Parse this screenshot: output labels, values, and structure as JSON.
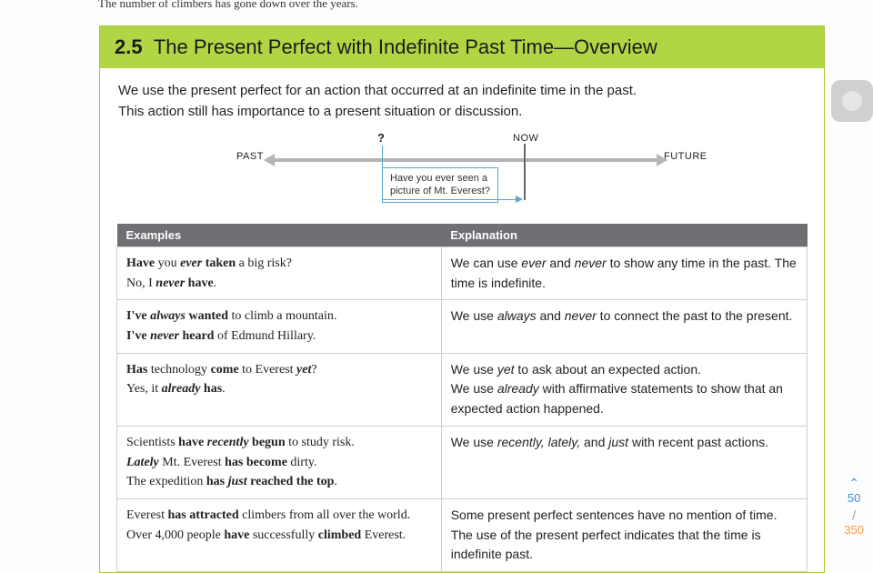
{
  "clipped_top_text": "The number of climbers has gone down over the years.",
  "header": {
    "section_number": "2.5",
    "title": "The Present Perfect with Indefinite Past Time—Overview"
  },
  "intro_lines": [
    "We use the present perfect for an action that occurred at an indefinite time in the past.",
    "This action still has importance to a present situation or discussion."
  ],
  "timeline": {
    "past_label": "PAST",
    "future_label": "FUTURE",
    "now_label": "NOW",
    "question_mark": "?",
    "callout_line1": "Have you ever seen a",
    "callout_line2": "picture of Mt. Everest?"
  },
  "table": {
    "headers": {
      "col1": "Examples",
      "col2": "Explanation"
    },
    "rows": [
      {
        "example_html": "<span class=\"b\">Have</span> you <span class=\"ib\">ever</span> <span class=\"b\">taken</span> a big risk?<br>No, I <span class=\"ib\">never</span> <span class=\"b\">have</span>.",
        "explanation_html": "We can use <span class=\"i\">ever</span> and <span class=\"i\">never</span> to show any time in the past. The time is indefinite."
      },
      {
        "example_html": "<span class=\"b\">I've</span> <span class=\"ib\">always</span> <span class=\"b\">wanted</span> to climb a mountain.<br><span class=\"b\">I've</span> <span class=\"ib\">never</span> <span class=\"b\">heard</span> of Edmund Hillary.",
        "explanation_html": "We use <span class=\"i\">always</span> and <span class=\"i\">never</span> to connect the past to the present."
      },
      {
        "example_html": "<span class=\"b\">Has</span> technology <span class=\"b\">come</span> to Everest <span class=\"ib\">yet</span>?<br>Yes, it <span class=\"ib\">already</span> <span class=\"b\">has</span>.",
        "explanation_html": "We use <span class=\"i\">yet</span> to ask about an expected action.<br>We use <span class=\"i\">already</span> with affirmative statements to show that an expected action happened."
      },
      {
        "example_html": "Scientists <span class=\"b\">have</span> <span class=\"ib\">recently</span> <span class=\"b\">begun</span> to study risk.<br><span class=\"ib\">Lately</span> Mt. Everest <span class=\"b\">has become</span> dirty.<br>The expedition <span class=\"b\">has</span> <span class=\"ib\">just</span> <span class=\"b\">reached the top</span>.",
        "explanation_html": "We use <span class=\"i\">recently, lately,</span> and <span class=\"i\">just</span> with recent past actions."
      },
      {
        "example_html": "Everest <span class=\"b\">has attracted</span> climbers from all over the world.<br>Over 4,000 people <span class=\"b\">have</span> successfully <span class=\"b\">climbed</span> Everest.",
        "explanation_html": "Some present perfect sentences have no mention of time. The use of the present perfect indicates that the time is indefinite past."
      }
    ]
  },
  "page_nav": {
    "chevron": "⌃",
    "current": "50",
    "slash": "/",
    "total": "350"
  }
}
